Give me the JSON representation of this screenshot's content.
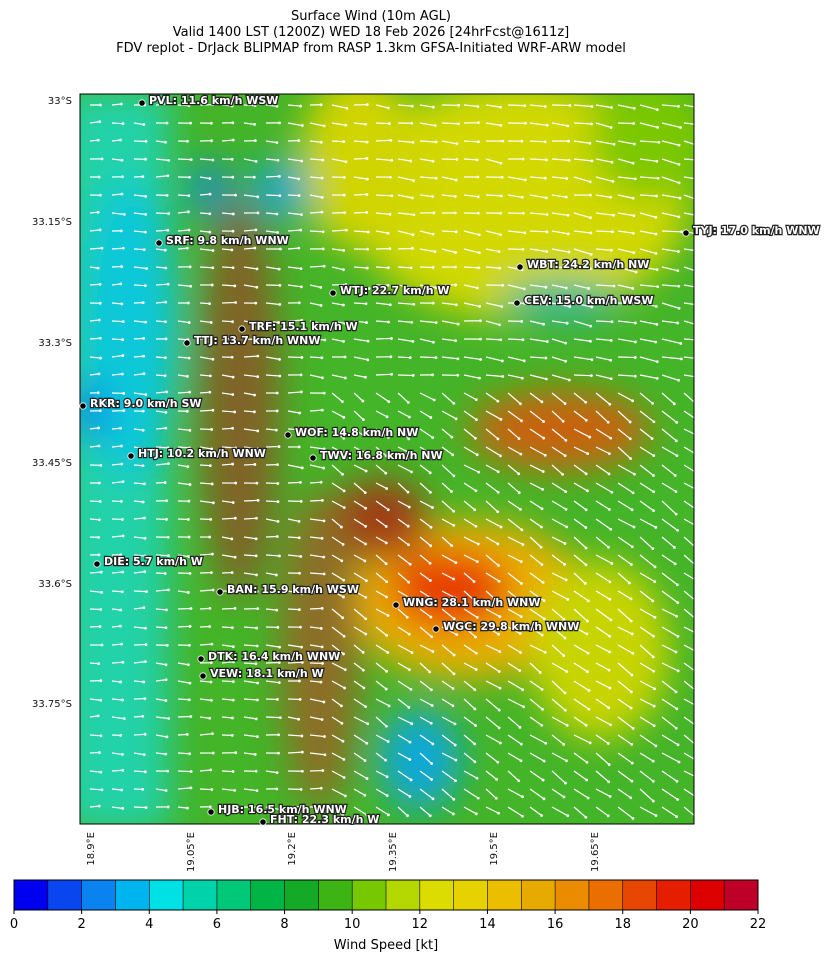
{
  "header": {
    "title_lines": [
      "Surface Wind (10m AGL)",
      "Valid 1400 LST (1200Z) WED 18 Feb 2026 [24hrFcst@1611z]",
      "FDV replot - DrJack BLIPMAP from RASP 1.3km GFSA-Initiated WRF-ARW model"
    ]
  },
  "map": {
    "lat_labels": [
      "33°S",
      "33.15°S",
      "33.3°S",
      "33.45°S",
      "33.6°S",
      "33.75°S"
    ],
    "lon_labels": [
      "18.9°E",
      "19.05°E",
      "19.2°E",
      "19.35°E",
      "19.5°E",
      "19.65°E"
    ],
    "stations": [
      {
        "label": "PVL: 11.6 km/h WSW"
      },
      {
        "label": "SRF: 9.8 km/h WNW"
      },
      {
        "label": "WTJ: 22.7 km/h W"
      },
      {
        "label": "TRF: 15.1 km/h W"
      },
      {
        "label": "TTJ: 13.7 km/h WNW"
      },
      {
        "label": "TYJ: 17.0 km/h WNW"
      },
      {
        "label": "WBT: 24.2 km/h NW"
      },
      {
        "label": "CEV: 15.0 km/h WSW"
      },
      {
        "label": "RKR: 9.0 km/h SW"
      },
      {
        "label": "WOF: 14.8 km/h NW"
      },
      {
        "label": "HTJ: 10.2 km/h WNW"
      },
      {
        "label": "TWV: 16.8 km/h NW"
      },
      {
        "label": "DIE: 5.7 km/h W"
      },
      {
        "label": "BAN: 15.9 km/h WSW"
      },
      {
        "label": "WNG: 28.1 km/h WNW"
      },
      {
        "label": "WGC: 29.8 km/h WNW"
      },
      {
        "label": "DTK: 16.4 km/h WNW"
      },
      {
        "label": "VEW: 18.1 km/h W"
      },
      {
        "label": "HJB: 16.5 km/h WNW"
      },
      {
        "label": "FHT: 22.3 km/h W"
      }
    ]
  },
  "colorbar": {
    "label": "Wind Speed [kt]",
    "lim": [
      0,
      22
    ],
    "ticks": [
      0,
      2,
      4,
      6,
      8,
      10,
      12,
      14,
      16,
      18,
      20,
      22
    ],
    "colors": [
      "#0000f0",
      "#0a46f0",
      "#0a82f0",
      "#00b4f0",
      "#00e1e6",
      "#00d2aa",
      "#00c878",
      "#00b446",
      "#14aa28",
      "#3cb414",
      "#78c800",
      "#b4d700",
      "#dcdc00",
      "#e6d200",
      "#ebbe00",
      "#e6aa00",
      "#eb8c00",
      "#eb6e00",
      "#e64600",
      "#e61e00",
      "#dc0000",
      "#be0028"
    ]
  }
}
